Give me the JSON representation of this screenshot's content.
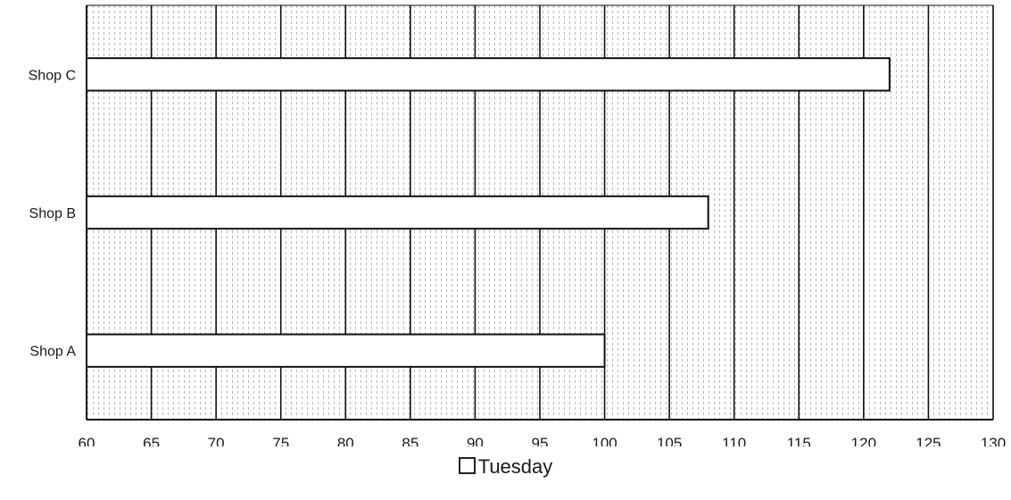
{
  "chart_data": {
    "type": "bar",
    "orientation": "horizontal",
    "categories": [
      "Shop A",
      "Shop B",
      "Shop C"
    ],
    "series": [
      {
        "name": "Tuesday",
        "values": [
          100,
          108,
          122
        ]
      }
    ],
    "xlim": [
      60,
      130
    ],
    "xticks": [
      "60",
      "65",
      "70",
      "75",
      "80",
      "85",
      "90",
      "95",
      "100",
      "105",
      "110",
      "115",
      "120",
      "125",
      "130"
    ],
    "grid": true,
    "legend_position": "bottom",
    "bar_color": "#ffffff",
    "edge_color": "#111111"
  },
  "legend": {
    "label": "Tuesday"
  }
}
